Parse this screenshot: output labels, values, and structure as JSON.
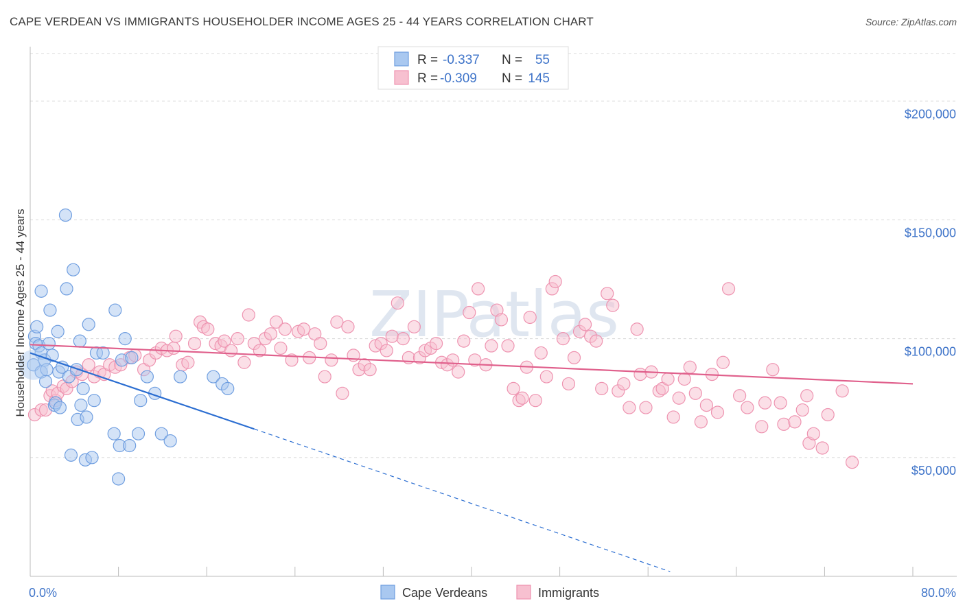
{
  "title": "CAPE VERDEAN VS IMMIGRANTS HOUSEHOLDER INCOME AGES 25 - 44 YEARS CORRELATION CHART",
  "source": "Source: ZipAtlas.com",
  "watermark": "ZIPatlas",
  "colors": {
    "blue_fill": "#a9c8f0",
    "blue_stroke": "#6f9ee0",
    "blue_line": "#2a6dd1",
    "pink_fill": "#f7c0d0",
    "pink_stroke": "#ee93b0",
    "pink_line": "#e0608c",
    "axis_label": "#3f74c9",
    "grid": "#d8d8d8"
  },
  "legend": {
    "rows": [
      {
        "r_label": "R =",
        "r_value": "-0.337",
        "n_label": "N =",
        "n_value": "55",
        "series": "blue"
      },
      {
        "r_label": "R =",
        "r_value": "-0.309",
        "n_label": "N =",
        "n_value": "145",
        "series": "pink"
      }
    ]
  },
  "bottom_legend": [
    "Cape Verdeans",
    "Immigrants"
  ],
  "chart_data": {
    "type": "scatter",
    "title": "CAPE VERDEAN VS IMMIGRANTS HOUSEHOLDER INCOME AGES 25 - 44 YEARS CORRELATION CHART",
    "xlabel": "",
    "ylabel": "Householder Income Ages 25 - 44 years",
    "xlim": [
      0,
      80
    ],
    "ylim": [
      0,
      220000
    ],
    "x_tick_labels": [
      "0.0%",
      "80.0%"
    ],
    "y_ticks": [
      {
        "value": 50000,
        "label": "$50,000"
      },
      {
        "value": 100000,
        "label": "$100,000"
      },
      {
        "value": 150000,
        "label": "$150,000"
      },
      {
        "value": 200000,
        "label": "$200,000"
      }
    ],
    "grid": true,
    "series": [
      {
        "name": "Cape Verdeans",
        "color": "blue",
        "trend": {
          "x0": 0,
          "y0": 94000,
          "x1": 20.3,
          "y1": 62000,
          "dash_to_x": 58,
          "dash_to_y": 2000
        },
        "points": [
          [
            0.3,
            89000
          ],
          [
            0.4,
            101000
          ],
          [
            0.5,
            98000
          ],
          [
            0.6,
            105000
          ],
          [
            0.8,
            97000
          ],
          [
            1.0,
            120000
          ],
          [
            1.0,
            86000
          ],
          [
            1.0,
            94000
          ],
          [
            1.3,
            91000
          ],
          [
            1.4,
            82000
          ],
          [
            1.5,
            87000
          ],
          [
            1.8,
            112000
          ],
          [
            1.7,
            98000
          ],
          [
            2.0,
            93000
          ],
          [
            2.2,
            72000
          ],
          [
            2.3,
            73000
          ],
          [
            2.5,
            103000
          ],
          [
            2.6,
            86000
          ],
          [
            2.7,
            71000
          ],
          [
            2.9,
            88000
          ],
          [
            3.2,
            152000
          ],
          [
            3.3,
            121000
          ],
          [
            3.5,
            84000
          ],
          [
            3.7,
            51000
          ],
          [
            3.9,
            129000
          ],
          [
            4.2,
            87000
          ],
          [
            4.3,
            66000
          ],
          [
            4.5,
            99000
          ],
          [
            4.6,
            72000
          ],
          [
            4.8,
            79000
          ],
          [
            5.0,
            49000
          ],
          [
            5.1,
            67000
          ],
          [
            5.3,
            106000
          ],
          [
            5.6,
            50000
          ],
          [
            5.8,
            74000
          ],
          [
            6.0,
            94000
          ],
          [
            6.6,
            94000
          ],
          [
            7.6,
            60000
          ],
          [
            7.7,
            112000
          ],
          [
            8.0,
            41000
          ],
          [
            8.1,
            55000
          ],
          [
            8.3,
            91000
          ],
          [
            8.6,
            100000
          ],
          [
            9.0,
            55000
          ],
          [
            9.2,
            92000
          ],
          [
            9.8,
            60000
          ],
          [
            10.0,
            74000
          ],
          [
            10.6,
            84000
          ],
          [
            11.3,
            77000
          ],
          [
            11.9,
            60000
          ],
          [
            12.7,
            57000
          ],
          [
            13.6,
            84000
          ],
          [
            16.6,
            84000
          ],
          [
            17.4,
            81000
          ],
          [
            17.9,
            79000
          ]
        ]
      },
      {
        "name": "Immigrants",
        "color": "pink",
        "trend": {
          "x0": 0,
          "y0": 97500,
          "x1": 80,
          "y1": 81000
        },
        "points": [
          [
            0.4,
            68000
          ],
          [
            1.0,
            70000
          ],
          [
            1.4,
            70000
          ],
          [
            1.8,
            76000
          ],
          [
            2.0,
            78000
          ],
          [
            2.3,
            74000
          ],
          [
            2.5,
            77000
          ],
          [
            3.0,
            80000
          ],
          [
            3.3,
            79000
          ],
          [
            3.8,
            82000
          ],
          [
            4.2,
            86000
          ],
          [
            4.7,
            85000
          ],
          [
            5.3,
            89000
          ],
          [
            5.8,
            84000
          ],
          [
            6.3,
            86000
          ],
          [
            6.7,
            85000
          ],
          [
            7.2,
            89000
          ],
          [
            7.7,
            88000
          ],
          [
            8.2,
            89000
          ],
          [
            9.0,
            92000
          ],
          [
            9.5,
            93000
          ],
          [
            10.3,
            87000
          ],
          [
            10.8,
            91000
          ],
          [
            11.4,
            94000
          ],
          [
            11.9,
            96000
          ],
          [
            12.4,
            95000
          ],
          [
            13.0,
            96000
          ],
          [
            13.2,
            101000
          ],
          [
            13.8,
            89000
          ],
          [
            14.3,
            90000
          ],
          [
            14.9,
            98000
          ],
          [
            15.4,
            107000
          ],
          [
            15.7,
            105000
          ],
          [
            16.1,
            104000
          ],
          [
            16.8,
            98000
          ],
          [
            17.3,
            97000
          ],
          [
            17.6,
            99000
          ],
          [
            18.2,
            95000
          ],
          [
            18.8,
            100000
          ],
          [
            19.4,
            90000
          ],
          [
            19.8,
            110000
          ],
          [
            20.3,
            98000
          ],
          [
            20.8,
            95000
          ],
          [
            21.3,
            100000
          ],
          [
            21.8,
            102000
          ],
          [
            22.3,
            107000
          ],
          [
            22.7,
            96000
          ],
          [
            23.1,
            104000
          ],
          [
            23.7,
            91000
          ],
          [
            24.3,
            103000
          ],
          [
            24.8,
            104000
          ],
          [
            25.3,
            92000
          ],
          [
            25.8,
            102000
          ],
          [
            26.3,
            98000
          ],
          [
            26.7,
            84000
          ],
          [
            27.3,
            91000
          ],
          [
            27.8,
            107000
          ],
          [
            28.3,
            77000
          ],
          [
            28.8,
            105000
          ],
          [
            29.3,
            93000
          ],
          [
            29.8,
            87000
          ],
          [
            30.3,
            89000
          ],
          [
            30.8,
            87000
          ],
          [
            31.3,
            97000
          ],
          [
            31.8,
            98000
          ],
          [
            32.3,
            95000
          ],
          [
            32.8,
            101000
          ],
          [
            33.3,
            115000
          ],
          [
            33.8,
            100000
          ],
          [
            34.3,
            92000
          ],
          [
            34.8,
            105000
          ],
          [
            35.3,
            92000
          ],
          [
            35.8,
            95000
          ],
          [
            36.3,
            96000
          ],
          [
            36.8,
            98000
          ],
          [
            37.3,
            90000
          ],
          [
            37.8,
            89000
          ],
          [
            38.3,
            91000
          ],
          [
            38.8,
            86000
          ],
          [
            39.3,
            99000
          ],
          [
            39.8,
            111000
          ],
          [
            40.3,
            91000
          ],
          [
            40.6,
            121000
          ],
          [
            41.3,
            89000
          ],
          [
            41.8,
            97000
          ],
          [
            42.3,
            112000
          ],
          [
            42.7,
            108000
          ],
          [
            43.3,
            97000
          ],
          [
            43.8,
            79000
          ],
          [
            44.3,
            74000
          ],
          [
            44.6,
            75000
          ],
          [
            45.0,
            88000
          ],
          [
            45.3,
            109000
          ],
          [
            45.8,
            74000
          ],
          [
            46.3,
            94000
          ],
          [
            46.8,
            84000
          ],
          [
            47.3,
            121000
          ],
          [
            47.6,
            124000
          ],
          [
            48.3,
            100000
          ],
          [
            48.8,
            81000
          ],
          [
            49.3,
            92000
          ],
          [
            49.8,
            103000
          ],
          [
            50.3,
            106000
          ],
          [
            50.8,
            101000
          ],
          [
            51.3,
            99000
          ],
          [
            51.8,
            79000
          ],
          [
            52.3,
            119000
          ],
          [
            52.8,
            114000
          ],
          [
            53.3,
            78000
          ],
          [
            53.8,
            81000
          ],
          [
            54.3,
            71000
          ],
          [
            55.0,
            104000
          ],
          [
            55.3,
            85000
          ],
          [
            55.8,
            71000
          ],
          [
            56.3,
            86000
          ],
          [
            57.0,
            78000
          ],
          [
            57.3,
            79000
          ],
          [
            57.8,
            83000
          ],
          [
            58.3,
            67000
          ],
          [
            58.8,
            75000
          ],
          [
            59.3,
            83000
          ],
          [
            59.8,
            88000
          ],
          [
            60.3,
            77000
          ],
          [
            60.8,
            65000
          ],
          [
            61.3,
            72000
          ],
          [
            61.8,
            85000
          ],
          [
            62.3,
            69000
          ],
          [
            62.8,
            90000
          ],
          [
            63.3,
            121000
          ],
          [
            64.3,
            76000
          ],
          [
            65.0,
            71000
          ],
          [
            66.3,
            63000
          ],
          [
            66.6,
            73000
          ],
          [
            67.3,
            87000
          ],
          [
            68.0,
            73000
          ],
          [
            68.3,
            64000
          ],
          [
            69.3,
            65000
          ],
          [
            70.0,
            70000
          ],
          [
            70.4,
            76000
          ],
          [
            70.6,
            56000
          ],
          [
            71.0,
            60000
          ],
          [
            71.8,
            54000
          ],
          [
            72.3,
            68000
          ],
          [
            73.6,
            78000
          ],
          [
            74.5,
            48000
          ]
        ]
      }
    ]
  }
}
